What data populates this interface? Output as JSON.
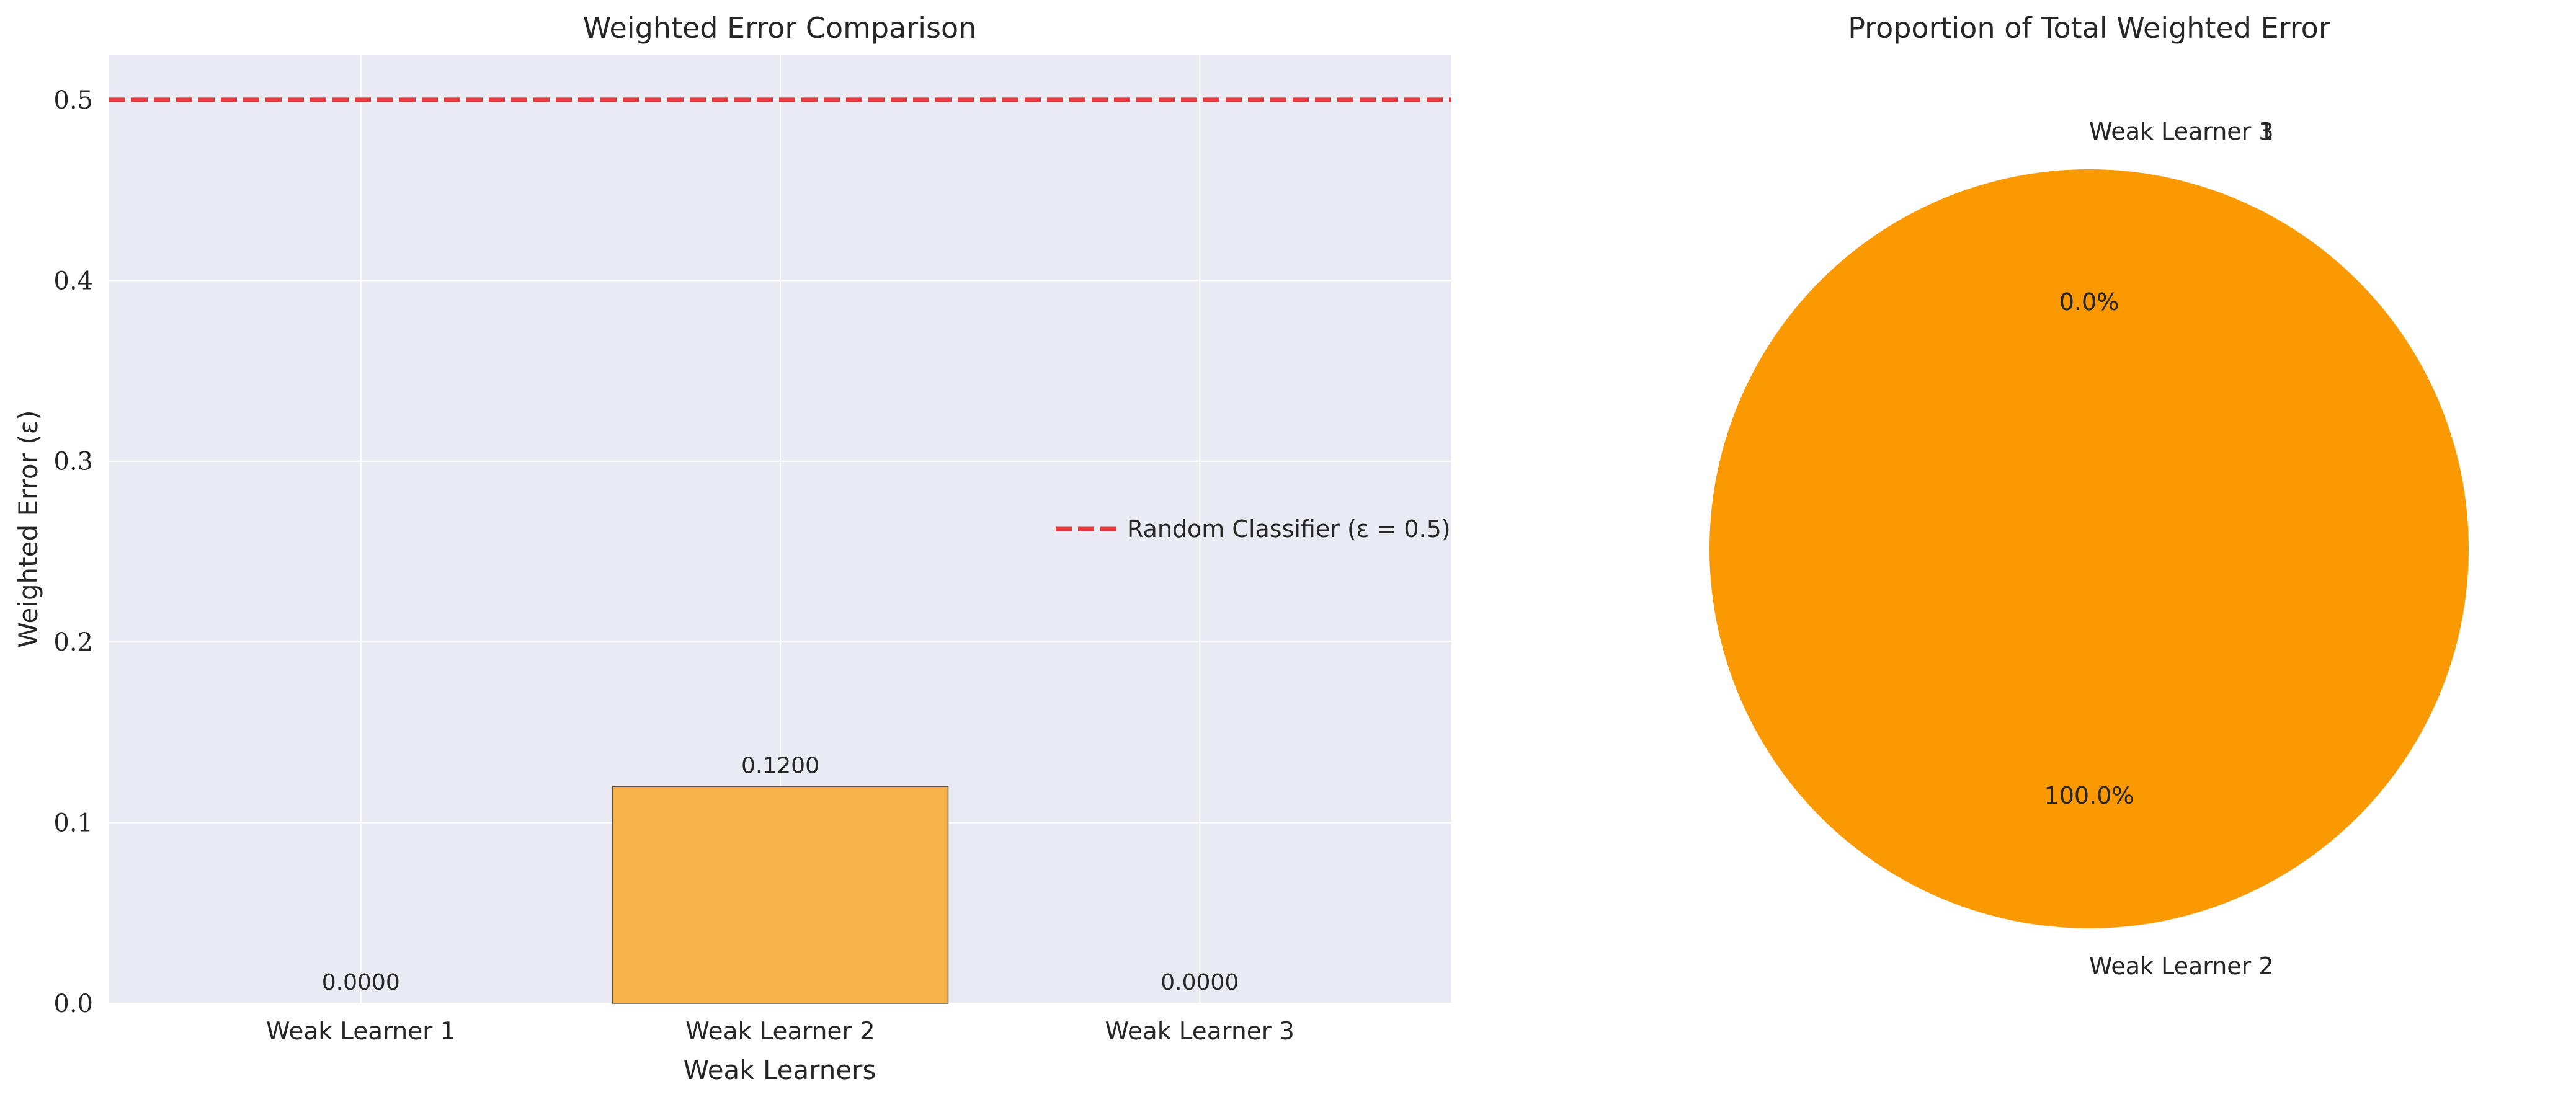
{
  "chart_data": [
    {
      "type": "bar",
      "title": "Weighted Error Comparison",
      "xlabel": "Weak Learners",
      "ylabel": "Weighted Error (ε)",
      "categories": [
        "Weak Learner 1",
        "Weak Learner 2",
        "Weak Learner 3"
      ],
      "values": [
        0.0,
        0.12,
        0.0
      ],
      "value_labels": [
        "0.0000",
        "0.1200",
        "0.0000"
      ],
      "ylim": [
        0,
        0.525
      ],
      "yticks": [
        0.0,
        0.1,
        0.2,
        0.3,
        0.4,
        0.5
      ],
      "ytick_labels": [
        "0.0",
        "0.1",
        "0.2",
        "0.3",
        "0.4",
        "0.5"
      ],
      "grid": true,
      "reference_line": {
        "y": 0.5,
        "label": "Random Classifier (ε = 0.5)",
        "color": "#e8383d",
        "style": "dashed"
      },
      "legend_position": "center-right",
      "colors": {
        "bar": "#f7b24a",
        "plot_bg": "#eaeaf2",
        "grid": "#ffffff"
      }
    },
    {
      "type": "pie",
      "title": "Proportion of Total Weighted Error",
      "labels": [
        "Weak Learner 1",
        "Weak Learner 2",
        "Weak Learner 3"
      ],
      "values": [
        0.0,
        0.12,
        0.0
      ],
      "percent_labels": [
        "0.0%",
        "100.0%",
        "0.0%"
      ],
      "colors": {
        "slice": "#fb9903"
      }
    }
  ]
}
